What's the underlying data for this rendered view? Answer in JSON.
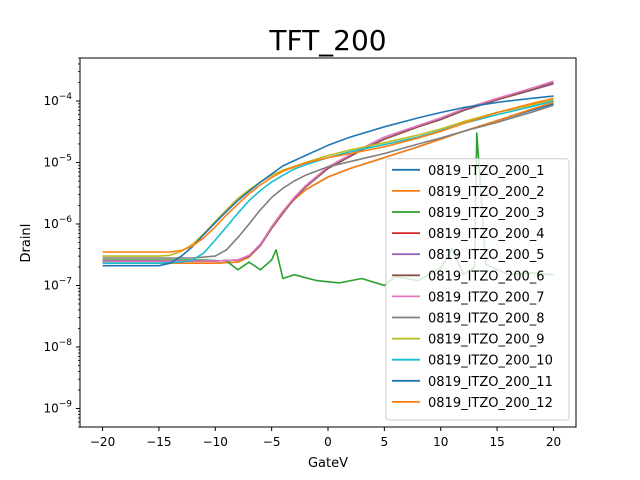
{
  "chart_data": {
    "type": "line",
    "title": "TFT_200",
    "xlabel": "GateV",
    "ylabel": "DrainI",
    "xscale": "linear",
    "yscale": "log",
    "xlim": [
      -22,
      22
    ],
    "ylim": [
      5e-10,
      0.0005
    ],
    "x_ticks": [
      -20,
      -15,
      -10,
      -5,
      0,
      5,
      10,
      15,
      20
    ],
    "x_tick_labels": [
      "−20",
      "−15",
      "−10",
      "−5",
      "0",
      "5",
      "10",
      "15",
      "20"
    ],
    "y_ticks": [
      1e-09,
      1e-08,
      1e-07,
      1e-06,
      1e-05,
      0.0001
    ],
    "y_tick_labels": [
      {
        "base": "10",
        "exp": "−9"
      },
      {
        "base": "10",
        "exp": "−8"
      },
      {
        "base": "10",
        "exp": "−7"
      },
      {
        "base": "10",
        "exp": "−6"
      },
      {
        "base": "10",
        "exp": "−5"
      },
      {
        "base": "10",
        "exp": "−4"
      }
    ],
    "grid": false,
    "legend_position": "lower-right",
    "series": [
      {
        "name": "0819_ITZO_200_1",
        "color": "#1f77b4",
        "x": [
          -20,
          -15,
          -10,
          -8,
          -7,
          -6,
          -5,
          -4,
          -3,
          -2,
          0,
          2,
          5,
          8,
          10,
          12,
          15,
          18,
          20
        ],
        "y": [
          2.3e-07,
          2.3e-07,
          2.3e-07,
          2.4e-07,
          2.9e-07,
          4.5e-07,
          9e-07,
          1.6e-06,
          2.5e-06,
          3.6e-06,
          5.8e-06,
          8e-06,
          1.2e-05,
          1.8e-05,
          2.4e-05,
          3.2e-05,
          4.8e-05,
          7e-05,
          9e-05
        ]
      },
      {
        "name": "0819_ITZO_200_2",
        "color": "#ff7f0e",
        "x": [
          -20,
          -15,
          -10,
          -8,
          -7,
          -6,
          -5,
          -4,
          -3,
          -2,
          0,
          2,
          5,
          8,
          10,
          12,
          15,
          18,
          20
        ],
        "y": [
          2.3e-07,
          2.3e-07,
          2.3e-07,
          2.4e-07,
          2.9e-07,
          4.5e-07,
          9e-07,
          1.6e-06,
          2.5e-06,
          3.6e-06,
          5.8e-06,
          8e-06,
          1.2e-05,
          1.8e-05,
          2.4e-05,
          3.2e-05,
          4.8e-05,
          7.3e-05,
          9.5e-05
        ]
      },
      {
        "name": "0819_ITZO_200_3",
        "color": "#2ca02c",
        "x": [
          -20,
          -15,
          -11,
          -9,
          -8,
          -7,
          -6,
          -5,
          -4.6,
          -4,
          -3,
          -1,
          1,
          3,
          5,
          6,
          8,
          10,
          11,
          12,
          13,
          13.2,
          14,
          16,
          18,
          20
        ],
        "y": [
          2.6e-07,
          2.6e-07,
          2.6e-07,
          2.5e-07,
          1.8e-07,
          2.4e-07,
          1.8e-07,
          2.6e-07,
          3.8e-07,
          1.3e-07,
          1.5e-07,
          1.2e-07,
          1.1e-07,
          1.3e-07,
          1e-07,
          1.4e-07,
          1.2e-07,
          1.9e-07,
          4e-07,
          1.5e-07,
          2e-07,
          3e-05,
          2.2e-07,
          1.5e-07,
          1.6e-07,
          1.5e-07
        ]
      },
      {
        "name": "0819_ITZO_200_4",
        "color": "#d62728",
        "x": [
          -20,
          -15,
          -10,
          -8,
          -7,
          -6,
          -5,
          -4,
          -3,
          -2,
          0,
          3,
          5,
          8,
          10,
          12,
          15,
          18,
          20
        ],
        "y": [
          2.5e-07,
          2.5e-07,
          2.5e-07,
          2.6e-07,
          3e-07,
          4.5e-07,
          8.5e-07,
          1.5e-06,
          2.6e-06,
          4e-06,
          8e-06,
          1.6e-05,
          2.4e-05,
          3.8e-05,
          5e-05,
          7e-05,
          0.000105,
          0.00015,
          0.00019
        ]
      },
      {
        "name": "0819_ITZO_200_5",
        "color": "#9467bd",
        "x": [
          -20,
          -15,
          -10,
          -8,
          -7,
          -6,
          -5,
          -4,
          -3,
          -2,
          0,
          3,
          5,
          8,
          10,
          12,
          15,
          18,
          20
        ],
        "y": [
          2.5e-07,
          2.5e-07,
          2.5e-07,
          2.6e-07,
          3e-07,
          4.5e-07,
          8.5e-07,
          1.5e-06,
          2.6e-06,
          4e-06,
          8e-06,
          1.6e-05,
          2.4e-05,
          3.8e-05,
          5e-05,
          7e-05,
          0.000105,
          0.00015,
          0.00019
        ]
      },
      {
        "name": "0819_ITZO_200_6",
        "color": "#8c564b",
        "x": [
          -20,
          -15,
          -10,
          -8,
          -7,
          -6,
          -5,
          -4,
          -3,
          -2,
          0,
          3,
          5,
          8,
          10,
          12,
          15,
          18,
          20
        ],
        "y": [
          2.5e-07,
          2.5e-07,
          2.5e-07,
          2.6e-07,
          3e-07,
          4.5e-07,
          8.5e-07,
          1.5e-06,
          2.6e-06,
          4e-06,
          8e-06,
          1.6e-05,
          2.4e-05,
          3.8e-05,
          5e-05,
          7e-05,
          0.000105,
          0.00015,
          0.0002
        ]
      },
      {
        "name": "0819_ITZO_200_7",
        "color": "#e377c2",
        "x": [
          -20,
          -15,
          -10,
          -8,
          -7,
          -6,
          -5,
          -4,
          -3,
          -2,
          0,
          3,
          5,
          8,
          10,
          12,
          15,
          18,
          20
        ],
        "y": [
          2.5e-07,
          2.5e-07,
          2.5e-07,
          2.6e-07,
          3.1e-07,
          4.7e-07,
          9e-07,
          1.6e-06,
          2.7e-06,
          4.2e-06,
          8.5e-06,
          1.7e-05,
          2.6e-05,
          4e-05,
          5.3e-05,
          7.4e-05,
          0.00011,
          0.00016,
          0.00021
        ]
      },
      {
        "name": "0819_ITZO_200_8",
        "color": "#7f7f7f",
        "x": [
          -20,
          -15,
          -12,
          -10,
          -9,
          -8,
          -7,
          -6,
          -5,
          -4,
          -3,
          -2,
          0,
          3,
          5,
          8,
          10,
          12,
          15,
          18,
          20
        ],
        "y": [
          2.8e-07,
          2.8e-07,
          2.8e-07,
          3e-07,
          3.8e-07,
          6e-07,
          1e-06,
          1.7e-06,
          2.7e-06,
          3.8e-06,
          5e-06,
          6.2e-06,
          8.5e-06,
          1.15e-05,
          1.4e-05,
          2e-05,
          2.5e-05,
          3.2e-05,
          4.5e-05,
          6.5e-05,
          8.5e-05
        ]
      },
      {
        "name": "0819_ITZO_200_9",
        "color": "#bcbd22",
        "x": [
          -20,
          -15,
          -14,
          -13,
          -12,
          -11,
          -10,
          -9,
          -8,
          -7,
          -6,
          -5,
          -4,
          -2,
          0,
          2,
          5,
          8,
          10,
          12,
          15,
          18,
          20
        ],
        "y": [
          3e-07,
          3e-07,
          3.1e-07,
          3.6e-07,
          4.7e-07,
          7e-07,
          1.1e-06,
          1.7e-06,
          2.6e-06,
          3.6e-06,
          4.8e-06,
          6.2e-06,
          7.5e-06,
          1e-05,
          1.3e-05,
          1.6e-05,
          2.1e-05,
          2.8e-05,
          3.5e-05,
          4.6e-05,
          6.5e-05,
          8.5e-05,
          0.000105
        ]
      },
      {
        "name": "0819_ITZO_200_10",
        "color": "#17becf",
        "x": [
          -20,
          -15,
          -13,
          -12,
          -11,
          -10,
          -9,
          -8,
          -7,
          -6,
          -5,
          -4,
          -3,
          -2,
          0,
          2,
          5,
          8,
          10,
          12,
          15,
          18,
          20
        ],
        "y": [
          2.3e-07,
          2.3e-07,
          2.4e-07,
          2.6e-07,
          3.4e-07,
          5.5e-07,
          9e-07,
          1.5e-06,
          2.4e-06,
          3.5e-06,
          4.8e-06,
          6.2e-06,
          7.8e-06,
          9.2e-06,
          1.2e-05,
          1.5e-05,
          1.95e-05,
          2.6e-05,
          3.3e-05,
          4.3e-05,
          6e-05,
          8e-05,
          0.0001
        ]
      },
      {
        "name": "0819_ITZO_200_11",
        "color": "#1f77b4",
        "x": [
          -20,
          -15,
          -14,
          -13,
          -12,
          -11,
          -10,
          -9,
          -8,
          -7,
          -6,
          -5,
          -4,
          -2,
          0,
          2,
          5,
          8,
          10,
          12,
          15,
          18,
          20
        ],
        "y": [
          2.1e-07,
          2.1e-07,
          2.3e-07,
          3e-07,
          4.3e-07,
          6.8e-07,
          1.05e-06,
          1.6e-06,
          2.4e-06,
          3.4e-06,
          4.8e-06,
          6.5e-06,
          8.8e-06,
          1.3e-05,
          1.9e-05,
          2.6e-05,
          3.8e-05,
          5.3e-05,
          6.5e-05,
          7.8e-05,
          9.5e-05,
          0.00011,
          0.00012
        ]
      },
      {
        "name": "0819_ITZO_200_12",
        "color": "#ff7f0e",
        "x": [
          -20,
          -15,
          -14,
          -13,
          -12,
          -11,
          -10,
          -9,
          -8,
          -7,
          -6,
          -5,
          -4,
          -2,
          0,
          2,
          5,
          8,
          10,
          12,
          15,
          18,
          20
        ],
        "y": [
          3.5e-07,
          3.5e-07,
          3.5e-07,
          3.7e-07,
          4.4e-07,
          6e-07,
          9e-07,
          1.4e-06,
          2.1e-06,
          3.1e-06,
          4.3e-06,
          5.7e-06,
          7.2e-06,
          9.8e-06,
          1.2e-05,
          1.4e-05,
          1.8e-05,
          2.5e-05,
          3.2e-05,
          4.3e-05,
          6.5e-05,
          9e-05,
          0.00011
        ]
      }
    ]
  }
}
